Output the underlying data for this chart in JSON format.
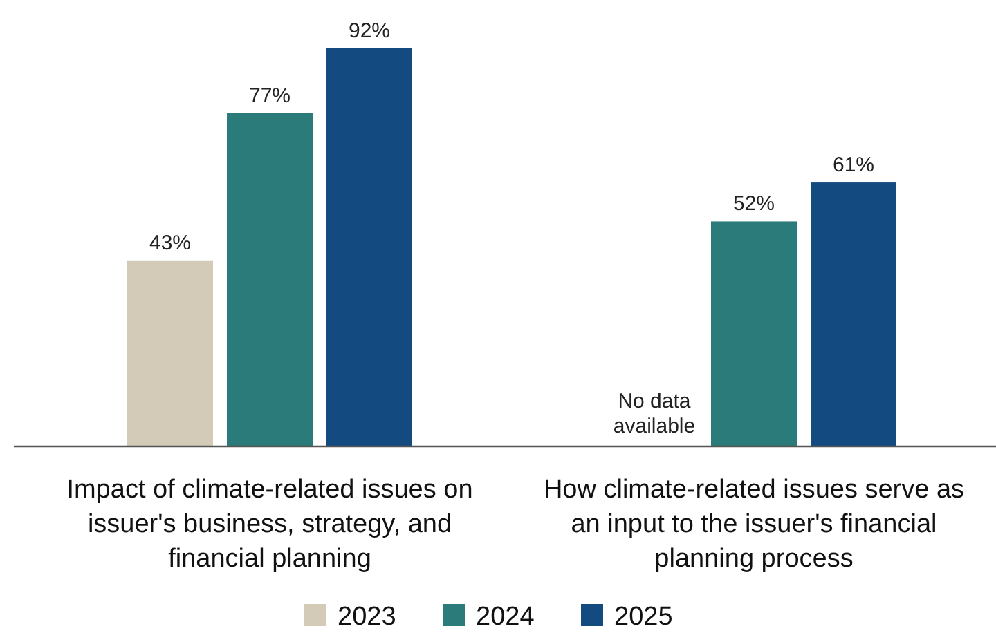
{
  "chart_data": {
    "type": "bar",
    "categories": [
      "Impact of climate-related issues on issuer's business, strategy, and financial planning",
      "How climate-related issues serve as an input to the issuer's financial planning process"
    ],
    "series": [
      {
        "name": "2023",
        "color": "#d3cab8",
        "values": [
          43,
          null
        ],
        "value_labels": [
          "43%",
          null
        ]
      },
      {
        "name": "2024",
        "color": "#2a7b79",
        "values": [
          77,
          52
        ],
        "value_labels": [
          "77%",
          "52%"
        ]
      },
      {
        "name": "2025",
        "color": "#134b80",
        "values": [
          92,
          61
        ],
        "value_labels": [
          "92%",
          "61%"
        ]
      }
    ],
    "annotations": [
      "No data available"
    ],
    "legend": "bottom"
  }
}
